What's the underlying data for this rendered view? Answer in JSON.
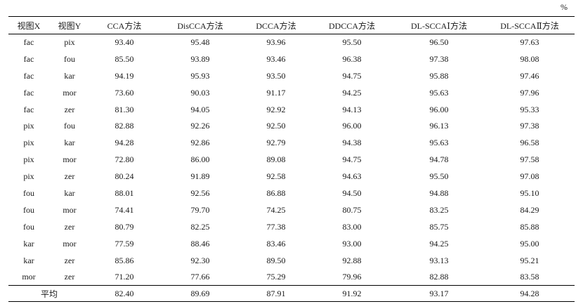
{
  "unit": "%",
  "headers": [
    "视图X",
    "视图Y",
    "CCA方法",
    "DisCCA方法",
    "DCCA方法",
    "DDCCA方法",
    "DL-SCCAⅠ方法",
    "DL-SCCAⅡ方法"
  ],
  "rows": [
    [
      "fac",
      "pix",
      "93.40",
      "95.48",
      "93.96",
      "95.50",
      "96.50",
      "97.63"
    ],
    [
      "fac",
      "fou",
      "85.50",
      "93.89",
      "93.46",
      "96.38",
      "97.38",
      "98.08"
    ],
    [
      "fac",
      "kar",
      "94.19",
      "95.93",
      "93.50",
      "94.75",
      "95.88",
      "97.46"
    ],
    [
      "fac",
      "mor",
      "73.60",
      "90.03",
      "91.17",
      "94.25",
      "95.63",
      "97.96"
    ],
    [
      "fac",
      "zer",
      "81.30",
      "94.05",
      "92.92",
      "94.13",
      "96.00",
      "95.33"
    ],
    [
      "pix",
      "fou",
      "82.88",
      "92.26",
      "92.50",
      "96.00",
      "96.13",
      "97.38"
    ],
    [
      "pix",
      "kar",
      "94.28",
      "92.86",
      "92.79",
      "94.38",
      "95.63",
      "96.58"
    ],
    [
      "pix",
      "mor",
      "72.80",
      "86.00",
      "89.08",
      "94.75",
      "94.78",
      "97.58"
    ],
    [
      "pix",
      "zer",
      "80.24",
      "91.89",
      "92.58",
      "94.63",
      "95.50",
      "97.08"
    ],
    [
      "fou",
      "kar",
      "88.01",
      "92.56",
      "86.88",
      "94.50",
      "94.88",
      "95.10"
    ],
    [
      "fou",
      "mor",
      "74.41",
      "79.70",
      "74.25",
      "80.75",
      "83.25",
      "84.29"
    ],
    [
      "fou",
      "zer",
      "80.79",
      "82.25",
      "77.38",
      "83.00",
      "85.75",
      "85.88"
    ],
    [
      "kar",
      "mor",
      "77.59",
      "88.46",
      "83.46",
      "93.00",
      "94.25",
      "95.00"
    ],
    [
      "kar",
      "zer",
      "85.86",
      "92.30",
      "89.50",
      "92.88",
      "93.13",
      "95.21"
    ],
    [
      "mor",
      "zer",
      "71.20",
      "77.66",
      "75.29",
      "79.96",
      "82.88",
      "83.58"
    ]
  ],
  "average": {
    "label": "平均",
    "values": [
      "82.40",
      "89.69",
      "87.91",
      "91.92",
      "93.17",
      "94.28"
    ]
  }
}
